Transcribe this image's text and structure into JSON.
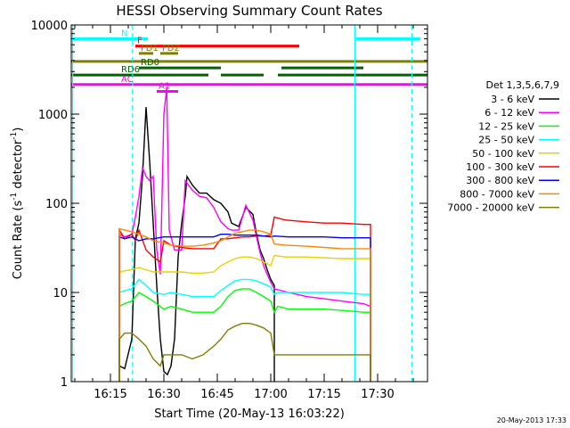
{
  "chart_data": {
    "type": "line",
    "title": "HESSI Observing Summary Count Rates",
    "xlabel": "Start Time (20-May-13 16:03:22)",
    "ylabel": "Count Rate (s",
    "ylabel_sup": "-1",
    "ylabel_end": " detector",
    "ylabel_sup2": "-1",
    "ylabel_close": ")",
    "y_scale": "log",
    "ylim": [
      1,
      10000
    ],
    "xlim_min": [
      964,
      1064
    ],
    "x_ticks": [
      {
        "min": 975,
        "label": "16:15"
      },
      {
        "min": 990,
        "label": "16:30"
      },
      {
        "min": 1005,
        "label": "16:45"
      },
      {
        "min": 1020,
        "label": "17:00"
      },
      {
        "min": 1035,
        "label": "17:15"
      },
      {
        "min": 1050,
        "label": "17:30"
      }
    ],
    "y_ticks": [
      {
        "value": 1,
        "label": "1"
      },
      {
        "value": 10,
        "label": "10"
      },
      {
        "value": 100,
        "label": "100"
      },
      {
        "value": 1000,
        "label": "1000"
      },
      {
        "value": 10000,
        "label": "10000"
      }
    ],
    "legend_header": "Det 1,3,5,6,7,9",
    "legend_position": "right",
    "stamp": "20-May-2013 17:33",
    "series": [
      {
        "name": "3 - 6 keV",
        "color": "#000000",
        "points": [
          [
            977.5,
            1.5
          ],
          [
            979,
            1.4
          ],
          [
            981,
            3
          ],
          [
            982,
            40
          ],
          [
            983,
            60
          ],
          [
            984,
            200
          ],
          [
            985,
            1200
          ],
          [
            986,
            300
          ],
          [
            987,
            60
          ],
          [
            988,
            12
          ],
          [
            989,
            3
          ],
          [
            990,
            1.3
          ],
          [
            991,
            1.2
          ],
          [
            992,
            1.5
          ],
          [
            993,
            3
          ],
          [
            994,
            25
          ],
          [
            995,
            60
          ],
          [
            996,
            120
          ],
          [
            996.5,
            200
          ],
          [
            998,
            160
          ],
          [
            1000,
            130
          ],
          [
            1002,
            130
          ],
          [
            1004,
            110
          ],
          [
            1006,
            100
          ],
          [
            1008,
            80
          ],
          [
            1009,
            60
          ],
          [
            1011,
            55
          ],
          [
            1013,
            90
          ],
          [
            1015,
            75
          ],
          [
            1016,
            45
          ],
          [
            1017,
            30
          ],
          [
            1018,
            24
          ],
          [
            1019,
            18
          ],
          [
            1020,
            14
          ],
          [
            1021,
            12
          ]
        ]
      },
      {
        "name": "6 - 12 keV",
        "color": "#ff00ff",
        "points": [
          [
            977.5,
            45
          ],
          [
            979,
            42
          ],
          [
            981,
            45
          ],
          [
            982,
            70
          ],
          [
            983,
            120
          ],
          [
            984,
            250
          ],
          [
            985,
            200
          ],
          [
            986,
            180
          ],
          [
            987,
            200
          ],
          [
            988,
            30
          ],
          [
            989,
            16
          ],
          [
            990,
            1000
          ],
          [
            990.8,
            2000
          ],
          [
            991.5,
            50
          ],
          [
            993,
            30
          ],
          [
            995,
            30
          ],
          [
            996,
            180
          ],
          [
            998,
            140
          ],
          [
            1000,
            120
          ],
          [
            1002,
            115
          ],
          [
            1004,
            90
          ],
          [
            1006,
            62
          ],
          [
            1008,
            52
          ],
          [
            1009,
            50
          ],
          [
            1011,
            50
          ],
          [
            1013,
            95
          ],
          [
            1015,
            65
          ],
          [
            1016,
            42
          ],
          [
            1017,
            28
          ],
          [
            1018,
            20
          ],
          [
            1019,
            16
          ],
          [
            1020,
            13
          ],
          [
            1021,
            11
          ],
          [
            1025,
            10
          ],
          [
            1030,
            9
          ],
          [
            1035,
            8.5
          ],
          [
            1040,
            8
          ],
          [
            1046,
            7.5
          ],
          [
            1048,
            7
          ]
        ]
      },
      {
        "name": "12 - 25 keV",
        "color": "#00ff00",
        "points": [
          [
            977.5,
            7
          ],
          [
            979,
            7.5
          ],
          [
            981,
            8
          ],
          [
            983,
            10
          ],
          [
            985,
            9
          ],
          [
            987,
            8
          ],
          [
            990,
            6.5
          ],
          [
            992,
            7
          ],
          [
            995,
            6.5
          ],
          [
            998,
            6
          ],
          [
            1001,
            6
          ],
          [
            1004,
            6
          ],
          [
            1006,
            7
          ],
          [
            1008,
            9
          ],
          [
            1010,
            10.5
          ],
          [
            1012,
            11
          ],
          [
            1014,
            11
          ],
          [
            1016,
            10
          ],
          [
            1018,
            9
          ],
          [
            1020,
            8
          ],
          [
            1021,
            6
          ],
          [
            1022,
            7
          ],
          [
            1025,
            6.5
          ],
          [
            1030,
            6.5
          ],
          [
            1035,
            6.5
          ],
          [
            1040,
            6.3
          ],
          [
            1046,
            6
          ],
          [
            1048,
            6
          ]
        ]
      },
      {
        "name": "25 - 50 keV",
        "color": "#00ffff",
        "points": [
          [
            977.5,
            10
          ],
          [
            979,
            10.5
          ],
          [
            981,
            11
          ],
          [
            983,
            14
          ],
          [
            985,
            12
          ],
          [
            987,
            10
          ],
          [
            990,
            9.5
          ],
          [
            992,
            10
          ],
          [
            995,
            9.5
          ],
          [
            998,
            9
          ],
          [
            1001,
            9
          ],
          [
            1004,
            9
          ],
          [
            1006,
            10.5
          ],
          [
            1008,
            12
          ],
          [
            1010,
            13.5
          ],
          [
            1012,
            14
          ],
          [
            1014,
            14
          ],
          [
            1016,
            13.5
          ],
          [
            1018,
            12.5
          ],
          [
            1020,
            11.5
          ],
          [
            1021,
            9.5
          ],
          [
            1022,
            10
          ],
          [
            1025,
            10
          ],
          [
            1030,
            10
          ],
          [
            1035,
            10
          ],
          [
            1040,
            10
          ],
          [
            1046,
            9.5
          ],
          [
            1048,
            9.5
          ]
        ]
      },
      {
        "name": "50 - 100 keV",
        "color": "#e6d200",
        "points": [
          [
            977.5,
            17
          ],
          [
            979,
            17.5
          ],
          [
            981,
            18
          ],
          [
            983,
            19
          ],
          [
            985,
            18
          ],
          [
            987,
            17
          ],
          [
            990,
            17
          ],
          [
            992,
            17
          ],
          [
            995,
            17
          ],
          [
            998,
            16.5
          ],
          [
            1001,
            16.5
          ],
          [
            1004,
            17
          ],
          [
            1006,
            20
          ],
          [
            1008,
            22
          ],
          [
            1010,
            24
          ],
          [
            1012,
            25
          ],
          [
            1014,
            25
          ],
          [
            1016,
            24
          ],
          [
            1018,
            22
          ],
          [
            1020,
            20
          ],
          [
            1021,
            26
          ],
          [
            1024,
            25
          ],
          [
            1030,
            25
          ],
          [
            1035,
            24.5
          ],
          [
            1040,
            24
          ],
          [
            1046,
            24
          ],
          [
            1048,
            24
          ]
        ]
      },
      {
        "name": "100 - 300 keV",
        "color": "#ff0000",
        "points": [
          [
            977.5,
            50
          ],
          [
            979,
            40
          ],
          [
            981,
            45
          ],
          [
            982,
            38
          ],
          [
            983,
            50
          ],
          [
            985,
            30
          ],
          [
            987,
            25
          ],
          [
            989,
            22
          ],
          [
            990,
            38
          ],
          [
            992,
            34
          ],
          [
            995,
            32
          ],
          [
            998,
            31
          ],
          [
            1001,
            31
          ],
          [
            1004,
            31
          ],
          [
            1006,
            40
          ],
          [
            1008,
            40
          ],
          [
            1010,
            41
          ],
          [
            1012,
            42
          ],
          [
            1014,
            42
          ],
          [
            1016,
            43
          ],
          [
            1018,
            43
          ],
          [
            1020,
            44
          ],
          [
            1021,
            70
          ],
          [
            1024,
            65
          ],
          [
            1030,
            62
          ],
          [
            1035,
            60
          ],
          [
            1040,
            60
          ],
          [
            1046,
            58
          ],
          [
            1048,
            58
          ]
        ]
      },
      {
        "name": "300 - 800 keV",
        "color": "#0000ff",
        "points": [
          [
            977.5,
            42
          ],
          [
            979,
            40
          ],
          [
            981,
            42
          ],
          [
            983,
            38
          ],
          [
            985,
            40
          ],
          [
            987,
            40
          ],
          [
            990,
            42
          ],
          [
            992,
            42
          ],
          [
            995,
            42
          ],
          [
            998,
            42
          ],
          [
            1001,
            42
          ],
          [
            1004,
            42
          ],
          [
            1006,
            45
          ],
          [
            1008,
            45
          ],
          [
            1010,
            44
          ],
          [
            1012,
            44
          ],
          [
            1014,
            44
          ],
          [
            1016,
            44
          ],
          [
            1018,
            43
          ],
          [
            1020,
            42
          ],
          [
            1021,
            43
          ],
          [
            1025,
            42
          ],
          [
            1030,
            42
          ],
          [
            1035,
            42
          ],
          [
            1040,
            41
          ],
          [
            1046,
            41
          ],
          [
            1048,
            41
          ]
        ]
      },
      {
        "name": "800 - 7000 keV",
        "color": "#ff8800",
        "points": [
          [
            977.5,
            52
          ],
          [
            979,
            50
          ],
          [
            981,
            48
          ],
          [
            983,
            45
          ],
          [
            985,
            42
          ],
          [
            987,
            38
          ],
          [
            990,
            36
          ],
          [
            992,
            34
          ],
          [
            995,
            33
          ],
          [
            998,
            33
          ],
          [
            1001,
            34
          ],
          [
            1004,
            36
          ],
          [
            1006,
            38
          ],
          [
            1008,
            42
          ],
          [
            1010,
            46
          ],
          [
            1012,
            48
          ],
          [
            1014,
            50
          ],
          [
            1016,
            50
          ],
          [
            1018,
            48
          ],
          [
            1020,
            45
          ],
          [
            1021,
            35
          ],
          [
            1024,
            34
          ],
          [
            1030,
            33
          ],
          [
            1035,
            32
          ],
          [
            1040,
            31
          ],
          [
            1046,
            31
          ],
          [
            1048,
            31
          ]
        ]
      },
      {
        "name": "7000 - 20000 keV",
        "color": "#808000",
        "points": [
          [
            977.5,
            3
          ],
          [
            979,
            3.5
          ],
          [
            981,
            3.5
          ],
          [
            983,
            3
          ],
          [
            985,
            2.5
          ],
          [
            987,
            1.8
          ],
          [
            989,
            1.5
          ],
          [
            990,
            2
          ],
          [
            992,
            2
          ],
          [
            995,
            2
          ],
          [
            998,
            1.8
          ],
          [
            1001,
            2
          ],
          [
            1004,
            2.5
          ],
          [
            1006,
            3
          ],
          [
            1008,
            3.8
          ],
          [
            1010,
            4.2
          ],
          [
            1012,
            4.5
          ],
          [
            1014,
            4.5
          ],
          [
            1016,
            4.3
          ],
          [
            1018,
            4
          ],
          [
            1020,
            3.5
          ],
          [
            1021,
            2
          ],
          [
            1025,
            2
          ],
          [
            1030,
            2
          ],
          [
            1035,
            2
          ],
          [
            1040,
            2
          ],
          [
            1046,
            2
          ],
          [
            1048,
            2
          ]
        ]
      }
    ],
    "flags": [
      {
        "label": "N",
        "color": "#00ffff",
        "y": 7000,
        "segments": [
          [
            964,
            985.5
          ],
          [
            1044,
            1062
          ]
        ]
      },
      {
        "label": "F",
        "color": "#ff0000",
        "y": 5800,
        "segments": [
          [
            982,
            1028
          ]
        ]
      },
      {
        "label": "FD1",
        "color": "#808000",
        "y": 4800,
        "segments": [
          [
            983,
            987
          ]
        ]
      },
      {
        "label": "FD2",
        "color": "#808000",
        "y": 4800,
        "segments": [
          [
            989,
            994
          ]
        ]
      },
      {
        "label": "",
        "color": "#808000",
        "y": 3900,
        "segments": [
          [
            964,
            1064
          ]
        ]
      },
      {
        "label": "RD0",
        "color": "#006400",
        "y": 3300,
        "segments": [
          [
            983,
            1006
          ],
          [
            1023,
            1046
          ]
        ]
      },
      {
        "label": "RD6",
        "color": "#006400",
        "y": 2750,
        "segments": [
          [
            964,
            1002.5
          ],
          [
            1006,
            1018
          ],
          [
            1022,
            1064
          ]
        ]
      },
      {
        "label": "AC",
        "color": "#ff00ff",
        "y": 2150,
        "segments": [
          [
            964,
            1064
          ]
        ]
      },
      {
        "label": "A1",
        "color": "#ff00ff",
        "y": 1800,
        "segments": [
          [
            988,
            994
          ]
        ]
      }
    ],
    "vlines": [
      {
        "x": 964.4,
        "color": "#00ffff",
        "style": "solid"
      },
      {
        "x": 981.2,
        "color": "#00ffff",
        "style": "dashed"
      },
      {
        "x": 1043.6,
        "color": "#00ffff",
        "style": "solid"
      },
      {
        "x": 1059.6,
        "color": "#00ffff",
        "style": "dashed"
      }
    ]
  }
}
